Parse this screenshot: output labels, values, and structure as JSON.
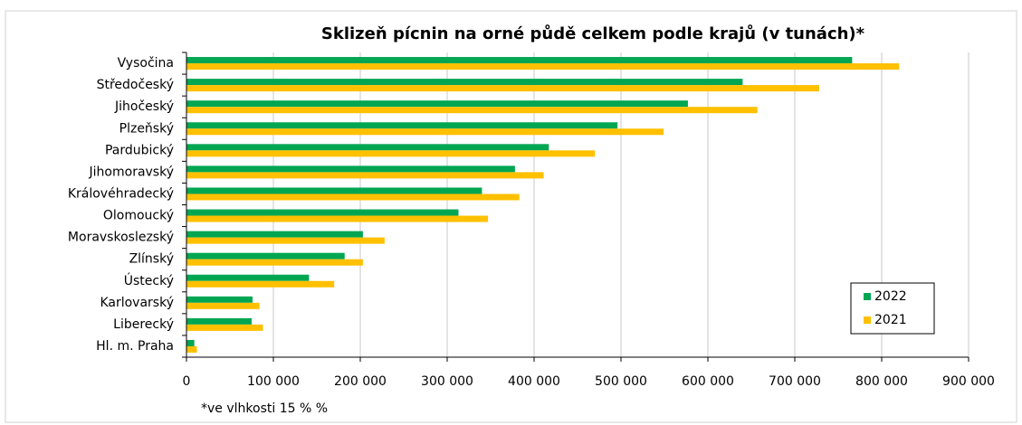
{
  "chart_data": {
    "type": "barh",
    "title": "Sklizeň pícnin na orné půdě celkem podle krajů (v tunách)*",
    "note": "*ve vlhkosti 15 % %",
    "categories": [
      "Vysočina",
      "Středočeský",
      "Jihočeský",
      "Plzeňský",
      "Pardubický",
      "Jihomoravský",
      "Královéhradecký",
      "Olomoucký",
      "Moravskoslezský",
      "Zlínský",
      "Ústecký",
      "Karlovarský",
      "Liberecký",
      "Hl. m. Praha"
    ],
    "series": [
      {
        "name": "2022",
        "color": "#00a651",
        "values": [
          766000,
          640000,
          577000,
          496000,
          417000,
          378000,
          340000,
          313000,
          203000,
          182000,
          141000,
          76000,
          75000,
          9000
        ]
      },
      {
        "name": "2021",
        "color": "#ffc000",
        "values": [
          820000,
          728000,
          657000,
          549000,
          470000,
          411000,
          383000,
          347000,
          228000,
          203000,
          170000,
          84000,
          88000,
          12000
        ]
      }
    ],
    "xlim": [
      0,
      900000
    ],
    "xticks": [
      0,
      {
        "value": 100000,
        "label": "100 000"
      },
      {
        "value": 200000,
        "label": "200 000"
      },
      {
        "value": 300000,
        "label": "300 000"
      },
      {
        "value": 400000,
        "label": "400 000"
      },
      {
        "value": 500000,
        "label": "500 000"
      },
      {
        "value": 600000,
        "label": "600 000"
      },
      {
        "value": 700000,
        "label": "700 000"
      },
      {
        "value": 800000,
        "label": "800 000"
      },
      {
        "value": 900000,
        "label": "900 000"
      }
    ],
    "grid": true,
    "legend": "lower right"
  }
}
